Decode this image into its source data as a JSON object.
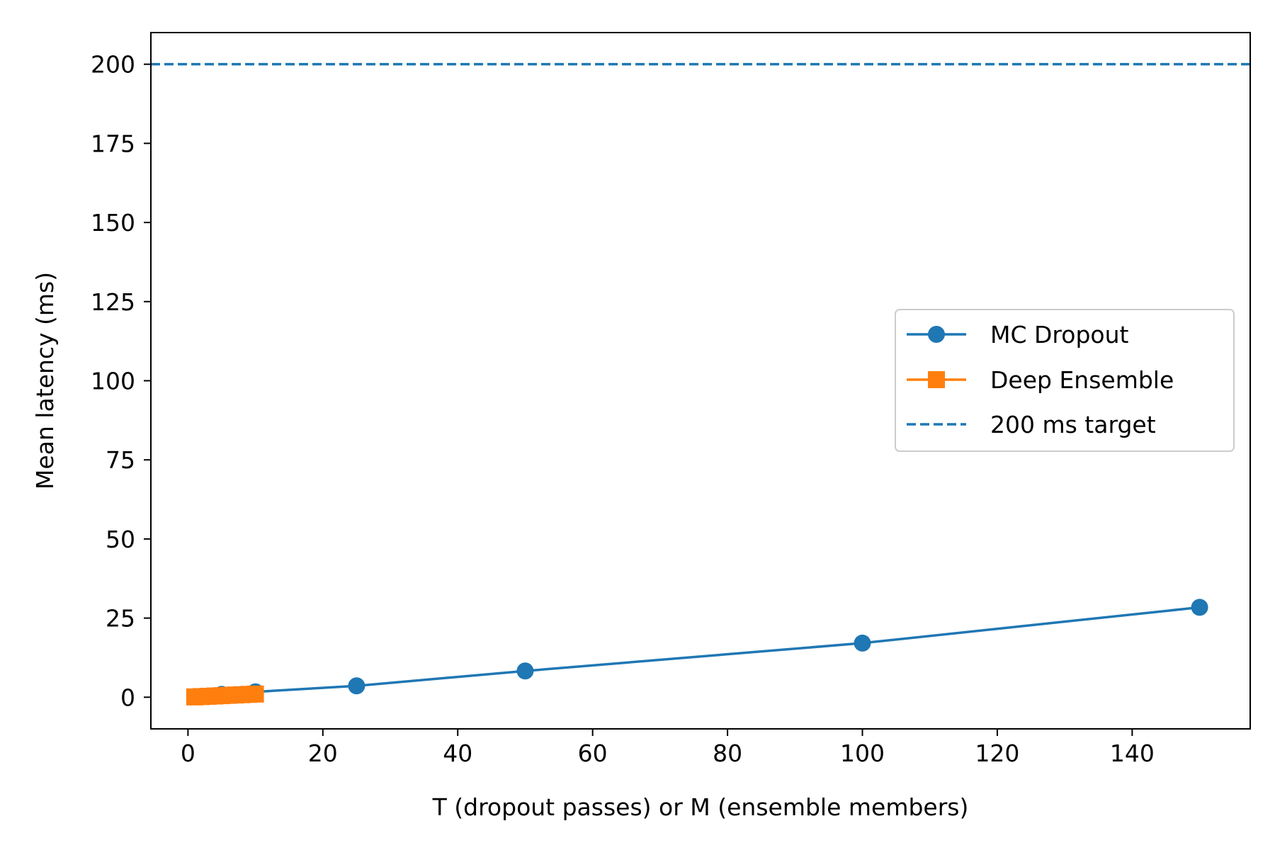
{
  "chart_data": {
    "type": "line",
    "xlabel": "T (dropout passes) or M (ensemble members)",
    "ylabel": "Mean latency (ms)",
    "xlim": [
      -5.5,
      157.5
    ],
    "ylim": [
      -10,
      210
    ],
    "xticks": [
      0,
      20,
      40,
      60,
      80,
      100,
      120,
      140
    ],
    "yticks": [
      0,
      25,
      50,
      75,
      100,
      125,
      150,
      175,
      200
    ],
    "grid": false,
    "legend_position": "center-right",
    "series": [
      {
        "name": "MC Dropout",
        "marker": "circle",
        "color": "#1f77b4",
        "x": [
          1,
          5,
          10,
          25,
          50,
          100,
          150
        ],
        "y": [
          0.2,
          0.9,
          1.7,
          3.6,
          8.3,
          17.1,
          28.4
        ]
      },
      {
        "name": "Deep Ensemble",
        "marker": "square",
        "color": "#ff7f0e",
        "x": [
          1,
          2,
          3,
          4,
          5,
          6,
          7,
          8,
          9,
          10
        ],
        "y": [
          0.1,
          0.2,
          0.3,
          0.4,
          0.5,
          0.6,
          0.7,
          0.8,
          0.9,
          1.0
        ]
      }
    ],
    "reference_lines": [
      {
        "name": "200 ms target",
        "y": 200,
        "style": "dashed",
        "color": "#1f77b4"
      }
    ]
  }
}
